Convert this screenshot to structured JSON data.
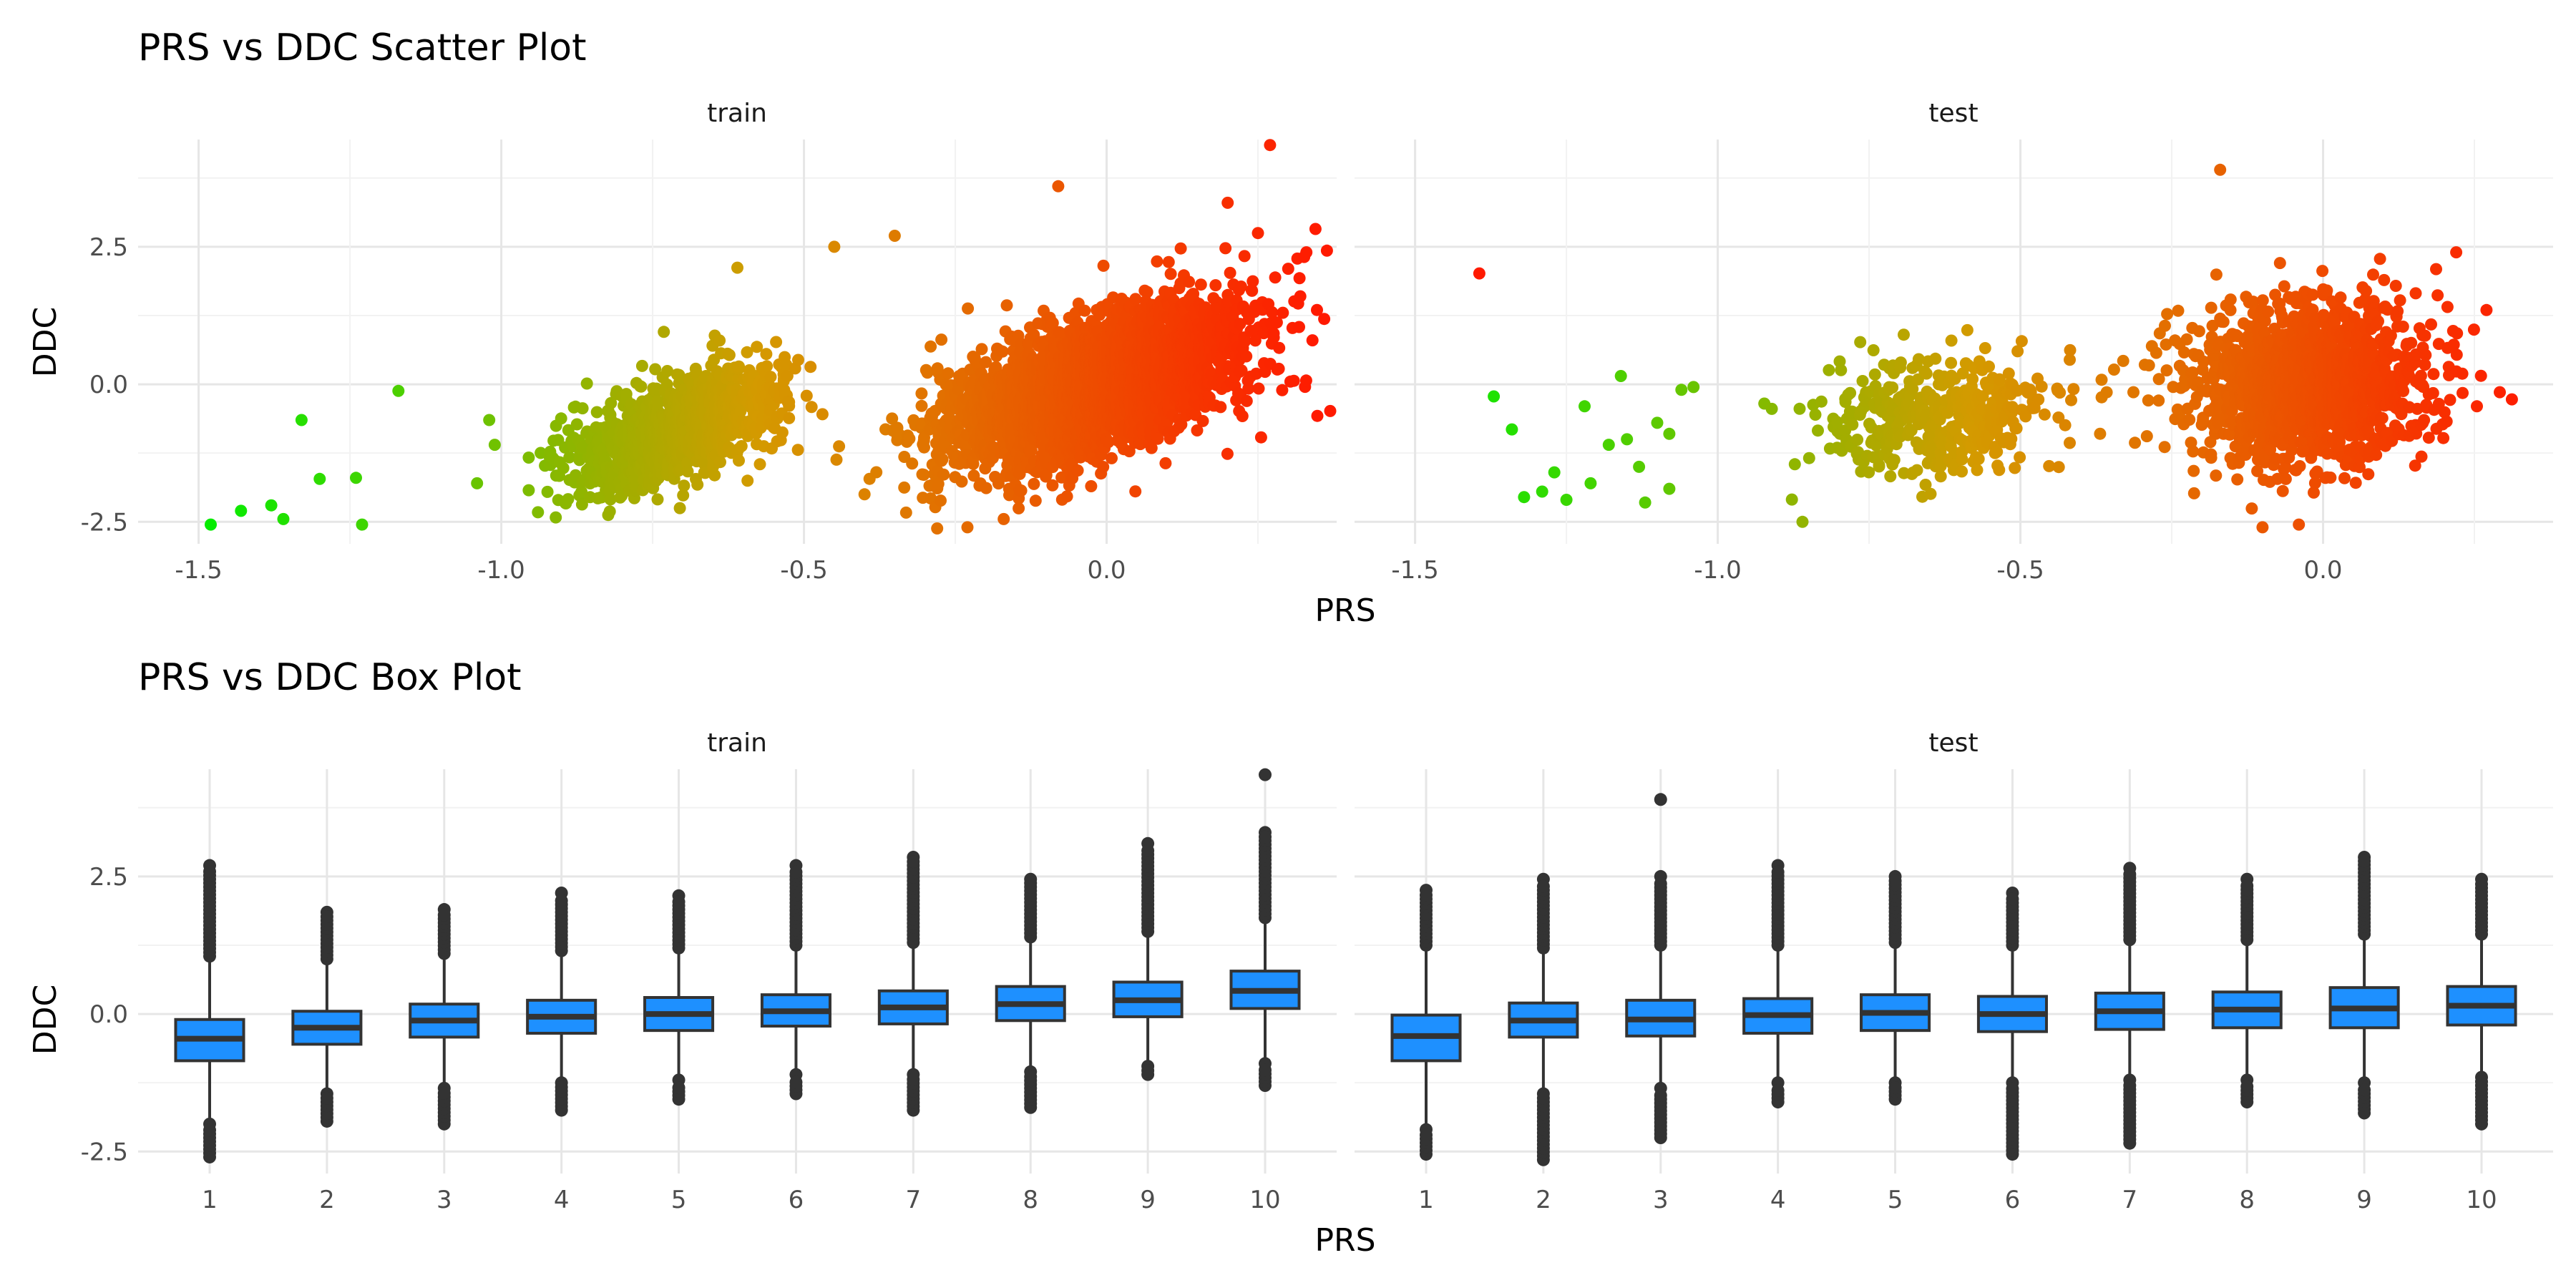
{
  "chart_data": [
    {
      "type": "scatter",
      "title": "PRS vs DDC Scatter Plot",
      "xlabel": "PRS",
      "ylabel": "DDC",
      "xlim": [
        -1.6,
        0.38
      ],
      "ylim": [
        -2.9,
        4.45
      ],
      "x_ticks": [
        -1.5,
        -1.0,
        -0.5,
        0.0
      ],
      "x_tick_labels": [
        "-1.5",
        "-1.0",
        "-0.5",
        "0.0"
      ],
      "y_ticks": [
        -2.5,
        0.0,
        2.5
      ],
      "y_tick_labels": [
        "-2.5",
        "0.0",
        "2.5"
      ],
      "grid": true,
      "color_scale": {
        "low": "#00ee00",
        "mid": "#d49a00",
        "high": "#ff1a00",
        "domain": [
          -1.5,
          0.35
        ]
      },
      "panels": [
        {
          "label": "train",
          "outliers": [
            [
              -1.48,
              -2.55
            ],
            [
              -1.43,
              -2.3
            ],
            [
              -1.38,
              -2.2
            ],
            [
              -1.36,
              -2.45
            ],
            [
              -1.33,
              -0.65
            ],
            [
              -1.3,
              -1.72
            ],
            [
              -1.24,
              -1.7
            ],
            [
              -1.23,
              -2.55
            ],
            [
              -1.17,
              -0.12
            ],
            [
              -1.02,
              -0.65
            ],
            [
              -1.04,
              -1.8
            ],
            [
              -0.91,
              -2.42
            ],
            [
              -0.88,
              -0.42
            ],
            [
              -0.45,
              2.5
            ],
            [
              -0.35,
              2.7
            ],
            [
              -0.08,
              3.6
            ],
            [
              0.27,
              4.35
            ],
            [
              0.25,
              2.75
            ],
            [
              0.33,
              2.4
            ],
            [
              0.34,
              0.8
            ],
            [
              0.3,
              2.1
            ],
            [
              -0.28,
              -2.62
            ],
            [
              -0.23,
              -2.6
            ],
            [
              -0.17,
              -2.45
            ],
            [
              0.32,
              1.6
            ],
            [
              -0.61,
              2.12
            ],
            [
              -0.4,
              -2.0
            ],
            [
              0.2,
              3.3
            ]
          ],
          "clusters": [
            {
              "n": 1100,
              "cx": -0.71,
              "cy": -0.8,
              "sx": 0.09,
              "sy": 0.55,
              "r": 0.55
            },
            {
              "n": 3200,
              "cx": -0.02,
              "cy": 0.0,
              "sx": 0.12,
              "sy": 0.72,
              "r": 0.55
            }
          ]
        },
        {
          "label": "test",
          "outliers": [
            [
              -1.37,
              -0.22
            ],
            [
              -1.34,
              -0.82
            ],
            [
              -1.32,
              -2.05
            ],
            [
              -1.29,
              -1.95
            ],
            [
              -1.27,
              -1.6
            ],
            [
              -1.25,
              -2.1
            ],
            [
              -1.22,
              -0.4
            ],
            [
              -1.21,
              -1.8
            ],
            [
              -1.18,
              -1.1
            ],
            [
              -1.16,
              0.15
            ],
            [
              -1.15,
              -1.0
            ],
            [
              -1.13,
              -1.5
            ],
            [
              -1.12,
              -2.15
            ],
            [
              -1.1,
              -0.7
            ],
            [
              -1.08,
              -1.9
            ],
            [
              -1.06,
              -0.1
            ],
            [
              -1.04,
              -0.05
            ],
            [
              -1.08,
              -0.9
            ],
            [
              -0.86,
              -2.5
            ],
            [
              -0.17,
              3.9
            ],
            [
              0.27,
              1.35
            ],
            [
              0.22,
              2.4
            ],
            [
              -0.1,
              -2.6
            ],
            [
              -0.04,
              -2.55
            ]
          ],
          "clusters": [
            {
              "n": 420,
              "cx": -0.64,
              "cy": -0.55,
              "sx": 0.1,
              "sy": 0.6,
              "r": 0.15
            },
            {
              "n": 1500,
              "cx": -0.03,
              "cy": 0.05,
              "sx": 0.1,
              "sy": 0.72,
              "r": 0.05
            }
          ]
        }
      ]
    },
    {
      "type": "box",
      "title": "PRS vs DDC Box Plot",
      "xlabel": "PRS",
      "ylabel": "DDC",
      "categories": [
        "1",
        "2",
        "3",
        "4",
        "5",
        "6",
        "7",
        "8",
        "9",
        "10"
      ],
      "ylim": [
        -2.9,
        4.45
      ],
      "y_ticks": [
        -2.5,
        0.0,
        2.5
      ],
      "y_tick_labels": [
        "-2.5",
        "0.0",
        "2.5"
      ],
      "grid": true,
      "fill_color": "#1e90ff",
      "panels": [
        {
          "label": "train",
          "boxes": [
            {
              "q1": -0.85,
              "median": -0.45,
              "q3": -0.1,
              "wlo": -1.9,
              "whi": 1.0,
              "out_lo": [
                -2.0,
                -2.6
              ],
              "out_hi": [
                1.05,
                2.7
              ]
            },
            {
              "q1": -0.55,
              "median": -0.25,
              "q3": 0.05,
              "wlo": -1.4,
              "whi": 0.95,
              "out_lo": [
                -1.45,
                -1.95
              ],
              "out_hi": [
                1.0,
                1.85
              ]
            },
            {
              "q1": -0.42,
              "median": -0.12,
              "q3": 0.18,
              "wlo": -1.3,
              "whi": 1.05,
              "out_lo": [
                -1.35,
                -2.0
              ],
              "out_hi": [
                1.1,
                1.9
              ]
            },
            {
              "q1": -0.35,
              "median": -0.05,
              "q3": 0.25,
              "wlo": -1.2,
              "whi": 1.1,
              "out_lo": [
                -1.25,
                -1.75
              ],
              "out_hi": [
                1.15,
                2.2
              ]
            },
            {
              "q1": -0.3,
              "median": 0.0,
              "q3": 0.3,
              "wlo": -1.15,
              "whi": 1.15,
              "out_lo": [
                -1.2,
                -1.55
              ],
              "out_hi": [
                1.2,
                2.15
              ]
            },
            {
              "q1": -0.22,
              "median": 0.05,
              "q3": 0.35,
              "wlo": -1.05,
              "whi": 1.2,
              "out_lo": [
                -1.1,
                -1.45
              ],
              "out_hi": [
                1.25,
                2.7
              ]
            },
            {
              "q1": -0.18,
              "median": 0.12,
              "q3": 0.42,
              "wlo": -1.05,
              "whi": 1.25,
              "out_lo": [
                -1.1,
                -1.75
              ],
              "out_hi": [
                1.3,
                2.85
              ]
            },
            {
              "q1": -0.12,
              "median": 0.18,
              "q3": 0.5,
              "wlo": -1.0,
              "whi": 1.35,
              "out_lo": [
                -1.05,
                -1.7
              ],
              "out_hi": [
                1.4,
                2.45
              ]
            },
            {
              "q1": -0.05,
              "median": 0.25,
              "q3": 0.58,
              "wlo": -0.9,
              "whi": 1.45,
              "out_lo": [
                -0.95,
                -1.1
              ],
              "out_hi": [
                1.5,
                3.1
              ]
            },
            {
              "q1": 0.1,
              "median": 0.42,
              "q3": 0.78,
              "wlo": -0.85,
              "whi": 1.7,
              "out_lo": [
                -0.9,
                -1.3
              ],
              "out_hi": [
                1.75,
                3.3,
                4.35
              ]
            }
          ]
        },
        {
          "label": "test",
          "boxes": [
            {
              "q1": -0.85,
              "median": -0.4,
              "q3": -0.02,
              "wlo": -2.0,
              "whi": 1.2,
              "out_lo": [
                -2.1,
                -2.55
              ],
              "out_hi": [
                1.25,
                2.25
              ]
            },
            {
              "q1": -0.42,
              "median": -0.12,
              "q3": 0.2,
              "wlo": -1.4,
              "whi": 1.15,
              "out_lo": [
                -1.45,
                -2.65
              ],
              "out_hi": [
                1.2,
                2.45
              ]
            },
            {
              "q1": -0.4,
              "median": -0.1,
              "q3": 0.25,
              "wlo": -1.3,
              "whi": 1.2,
              "out_lo": [
                -1.35,
                -2.25
              ],
              "out_hi": [
                1.25,
                2.5,
                3.9
              ]
            },
            {
              "q1": -0.35,
              "median": -0.02,
              "q3": 0.28,
              "wlo": -1.2,
              "whi": 1.2,
              "out_lo": [
                -1.25,
                -1.6
              ],
              "out_hi": [
                1.25,
                2.7
              ]
            },
            {
              "q1": -0.3,
              "median": 0.02,
              "q3": 0.35,
              "wlo": -1.2,
              "whi": 1.25,
              "out_lo": [
                -1.25,
                -1.55
              ],
              "out_hi": [
                1.3,
                2.5
              ]
            },
            {
              "q1": -0.32,
              "median": 0.0,
              "q3": 0.32,
              "wlo": -1.2,
              "whi": 1.2,
              "out_lo": [
                -1.25,
                -2.55
              ],
              "out_hi": [
                1.25,
                2.2
              ]
            },
            {
              "q1": -0.28,
              "median": 0.05,
              "q3": 0.38,
              "wlo": -1.15,
              "whi": 1.3,
              "out_lo": [
                -1.2,
                -2.35
              ],
              "out_hi": [
                1.35,
                2.65
              ]
            },
            {
              "q1": -0.25,
              "median": 0.08,
              "q3": 0.4,
              "wlo": -1.15,
              "whi": 1.3,
              "out_lo": [
                -1.2,
                -1.6
              ],
              "out_hi": [
                1.35,
                2.45
              ]
            },
            {
              "q1": -0.25,
              "median": 0.1,
              "q3": 0.48,
              "wlo": -1.2,
              "whi": 1.4,
              "out_lo": [
                -1.25,
                -1.8
              ],
              "out_hi": [
                1.45,
                2.85
              ]
            },
            {
              "q1": -0.2,
              "median": 0.15,
              "q3": 0.5,
              "wlo": -1.1,
              "whi": 1.4,
              "out_lo": [
                -1.15,
                -2.0
              ],
              "out_hi": [
                1.45,
                2.45
              ]
            }
          ]
        }
      ]
    }
  ]
}
